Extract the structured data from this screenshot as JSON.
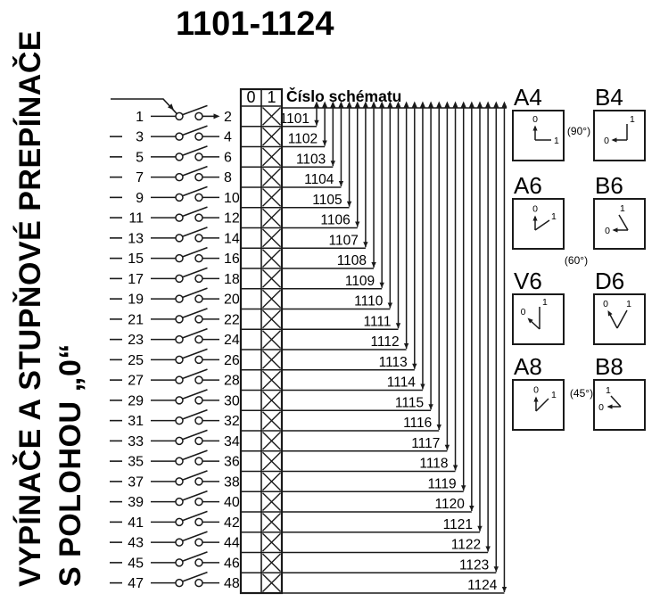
{
  "title": "1101-1124",
  "heading": {
    "line1": "VYPÍNAČE A STUPŇOVÉ PREPÍNAČE",
    "line2": "S POLOHOU „0“"
  },
  "schema_header": "Číslo schématu",
  "table": {
    "col0": "0",
    "col1": "1"
  },
  "rows": [
    {
      "left": "1",
      "right": "2",
      "schema": "1101",
      "col0": "",
      "col1": "X"
    },
    {
      "left": "3",
      "right": "4",
      "schema": "1102",
      "col0": "",
      "col1": "X"
    },
    {
      "left": "5",
      "right": "6",
      "schema": "1103",
      "col0": "",
      "col1": "X"
    },
    {
      "left": "7",
      "right": "8",
      "schema": "1104",
      "col0": "",
      "col1": "X"
    },
    {
      "left": "9",
      "right": "10",
      "schema": "1105",
      "col0": "",
      "col1": "X"
    },
    {
      "left": "11",
      "right": "12",
      "schema": "1106",
      "col0": "",
      "col1": "X"
    },
    {
      "left": "13",
      "right": "14",
      "schema": "1107",
      "col0": "",
      "col1": "X"
    },
    {
      "left": "15",
      "right": "16",
      "schema": "1108",
      "col0": "",
      "col1": "X"
    },
    {
      "left": "17",
      "right": "18",
      "schema": "1109",
      "col0": "",
      "col1": "X"
    },
    {
      "left": "19",
      "right": "20",
      "schema": "1110",
      "col0": "",
      "col1": "X"
    },
    {
      "left": "21",
      "right": "22",
      "schema": "1111",
      "col0": "",
      "col1": "X"
    },
    {
      "left": "23",
      "right": "24",
      "schema": "1112",
      "col0": "",
      "col1": "X"
    },
    {
      "left": "25",
      "right": "26",
      "schema": "1113",
      "col0": "",
      "col1": "X"
    },
    {
      "left": "27",
      "right": "28",
      "schema": "1114",
      "col0": "",
      "col1": "X"
    },
    {
      "left": "29",
      "right": "30",
      "schema": "1115",
      "col0": "",
      "col1": "X"
    },
    {
      "left": "31",
      "right": "32",
      "schema": "1116",
      "col0": "",
      "col1": "X"
    },
    {
      "left": "33",
      "right": "34",
      "schema": "1117",
      "col0": "",
      "col1": "X"
    },
    {
      "left": "35",
      "right": "36",
      "schema": "1118",
      "col0": "",
      "col1": "X"
    },
    {
      "left": "37",
      "right": "38",
      "schema": "1119",
      "col0": "",
      "col1": "X"
    },
    {
      "left": "39",
      "right": "40",
      "schema": "1120",
      "col0": "",
      "col1": "X"
    },
    {
      "left": "41",
      "right": "42",
      "schema": "1121",
      "col0": "",
      "col1": "X"
    },
    {
      "left": "43",
      "right": "44",
      "schema": "1122",
      "col0": "",
      "col1": "X"
    },
    {
      "left": "45",
      "right": "46",
      "schema": "1123",
      "col0": "",
      "col1": "X"
    },
    {
      "left": "47",
      "right": "48",
      "schema": "1124",
      "col0": "",
      "col1": "X"
    }
  ],
  "positions": {
    "boxes": [
      {
        "label": "A4",
        "glyph": "A4",
        "pos0": "0",
        "pos1": "1"
      },
      {
        "label": "B4",
        "glyph": "B4",
        "pos0": "0",
        "pos1": "1"
      },
      {
        "label": "A6",
        "glyph": "A6",
        "pos0": "0",
        "pos1": "1"
      },
      {
        "label": "B6",
        "glyph": "B6",
        "pos0": "0",
        "pos1": "1"
      },
      {
        "label": "V6",
        "glyph": "V6",
        "pos0": "0",
        "pos1": "1"
      },
      {
        "label": "D6",
        "glyph": "D6",
        "pos0": "0",
        "pos1": "1"
      },
      {
        "label": "A8",
        "glyph": "A8",
        "pos0": "0",
        "pos1": "1"
      },
      {
        "label": "B8",
        "glyph": "B8",
        "pos0": "0",
        "pos1": "1"
      }
    ],
    "angles": [
      {
        "text": "(90°)"
      },
      {
        "text": "(60°)"
      },
      {
        "text": "(45°)"
      }
    ]
  },
  "colors": {
    "line": "#1a1a1a",
    "text": "#000000",
    "background": "#ffffff"
  }
}
